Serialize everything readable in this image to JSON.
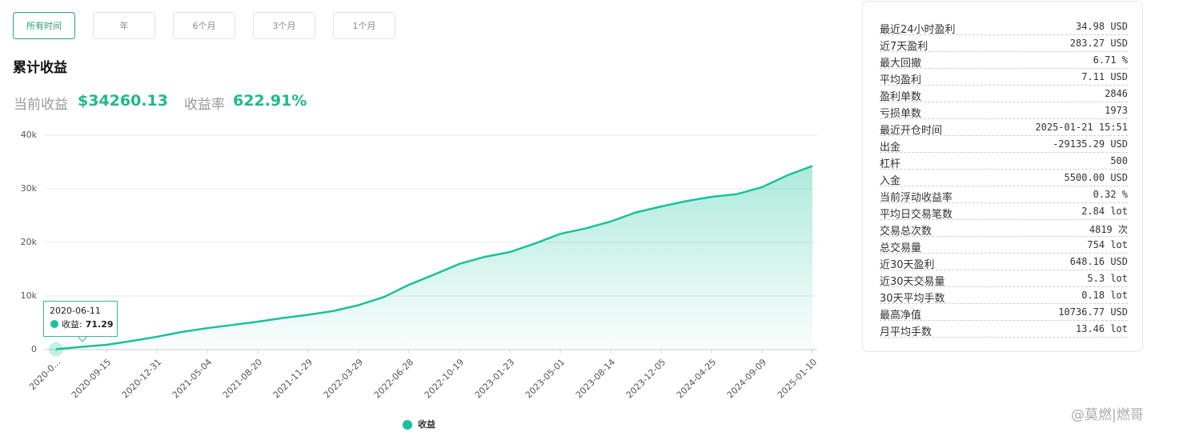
{
  "tabs": [
    "所有时间",
    "年",
    "6个月",
    "3个月",
    "1个月"
  ],
  "header": {
    "title": "累计收益"
  },
  "summary": [
    {
      "label": "当前收益",
      "value": "$34260.13"
    },
    {
      "label": "收益率",
      "value": "622.91%"
    }
  ],
  "chart_data": {
    "type": "area",
    "categories": [
      "2020-0...",
      null,
      "2020-09-15",
      null,
      "2020-12-31",
      null,
      "2021-05-04",
      null,
      "2021-08-20",
      null,
      "2021-11-29",
      null,
      "2022-03-29",
      null,
      "2022-06-28",
      null,
      "2022-10-19",
      null,
      "2023-01-23",
      null,
      "2023-05-01",
      null,
      "2023-08-14",
      null,
      "2023-12-05",
      null,
      "2024-04-25",
      null,
      "2024-09-09",
      null,
      "2025-01-10"
    ],
    "series": [
      {
        "name": "收益",
        "color": "#17c29a",
        "values": [
          71.29,
          500,
          900,
          1600,
          2400,
          3300,
          4000,
          4600,
          5200,
          5900,
          6500,
          7200,
          8300,
          9800,
          12100,
          14000,
          16000,
          17300,
          18200,
          19800,
          21600,
          22600,
          23900,
          25600,
          26700,
          27700,
          28500,
          29000,
          30300,
          32500,
          34260
        ]
      }
    ],
    "ylim": [
      0,
      40000
    ],
    "yticks": [
      0,
      {
        "value": 10000,
        "label": "10k"
      },
      {
        "value": 20000,
        "label": "20k"
      },
      {
        "value": 30000,
        "label": "30k"
      },
      {
        "value": 40000,
        "label": "40k"
      }
    ],
    "grid": true,
    "tooltip": {
      "date": "2020-06-11"
    }
  },
  "stats": [
    [
      "最近24小时盈利",
      "34.98 USD"
    ],
    [
      "近7天盈利",
      "283.27 USD"
    ],
    [
      "最大回撤",
      "6.71 %"
    ],
    [
      "平均盈利",
      "7.11 USD"
    ],
    [
      "盈利单数",
      "2846"
    ],
    [
      "亏损单数",
      "1973"
    ],
    [
      "最近开仓时间",
      "2025-01-21 15:51"
    ],
    [
      "出金",
      "-29135.29 USD"
    ],
    [
      "杠杆",
      "500"
    ],
    [
      "入金",
      "5500.00 USD"
    ],
    [
      "当前浮动收益率",
      "0.32 %"
    ],
    [
      "平均日交易笔数",
      "2.84 lot"
    ],
    [
      "交易总次数",
      "4819 次"
    ],
    [
      "总交易量",
      "754 lot"
    ],
    [
      "近30天盈利",
      "648.16 USD"
    ],
    [
      "近30天交易量",
      "5.3 lot"
    ],
    [
      "30天平均手数",
      "0.18 lot"
    ],
    [
      "最高净值",
      "10736.77 USD"
    ],
    [
      "月平均手数",
      "13.46 lot"
    ]
  ],
  "watermark": "@莫燃|燃哥"
}
